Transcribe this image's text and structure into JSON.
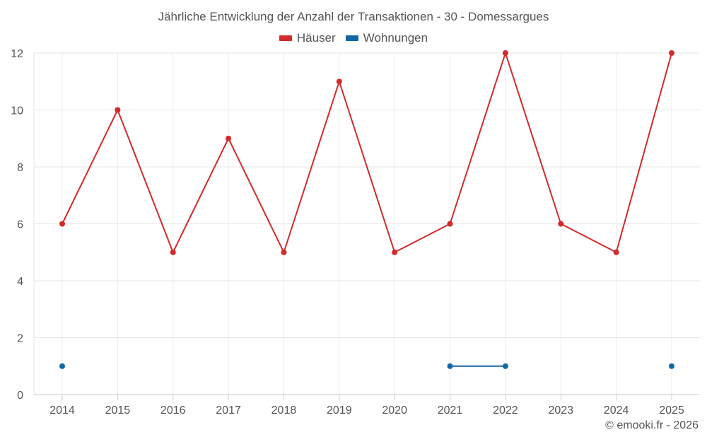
{
  "chart_data": {
    "type": "line",
    "title": "Jährliche Entwicklung der Anzahl der Transaktionen - 30 - Domessargues",
    "categories": [
      "2014",
      "2015",
      "2016",
      "2017",
      "2018",
      "2019",
      "2020",
      "2021",
      "2022",
      "2023",
      "2024",
      "2025"
    ],
    "series": [
      {
        "name": "Häuser",
        "color": "#d42a2a",
        "values": [
          6,
          10,
          5,
          9,
          5,
          11,
          5,
          6,
          12,
          6,
          5,
          12
        ]
      },
      {
        "name": "Wohnungen",
        "color": "#1167a5",
        "values": [
          1,
          null,
          null,
          null,
          null,
          null,
          null,
          1,
          1,
          null,
          null,
          1
        ]
      }
    ],
    "yticks": [
      0,
      2,
      4,
      6,
      8,
      10,
      12
    ],
    "ylim": [
      0,
      12
    ],
    "xlabel": "",
    "ylabel": "",
    "grid": true,
    "legend_position": "top-center"
  },
  "credit": "© emooki.fr - 2026"
}
